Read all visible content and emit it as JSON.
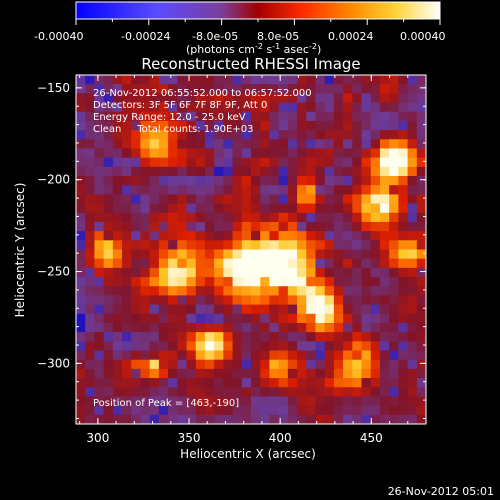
{
  "colorbar": {
    "ticks": [
      "-0.00040",
      "-0.00024",
      "-8.0e-05",
      "8.0e-05",
      "0.00024",
      "0.00040"
    ],
    "units_main": "(photons cm",
    "units_sup1": "-2",
    "units_mid1": " s",
    "units_sup2": "-1",
    "units_mid2": " asec",
    "units_sup3": "-2",
    "units_end": ")",
    "colors": [
      "#0000ff",
      "#6a4bff",
      "#7a3f9a",
      "#a00000",
      "#ff3000",
      "#ff8c00",
      "#ffd43a",
      "#ffffff"
    ]
  },
  "chart_data": {
    "type": "heatmap",
    "title": "Reconstructed RHESSI Image",
    "xlabel": "Heliocentric X (arcsec)",
    "ylabel": "Heliocentric Y (arcsec)",
    "xlim": [
      288,
      480
    ],
    "ylim": [
      -333,
      -143
    ],
    "xticks": [
      300,
      350,
      400,
      450
    ],
    "yticks": [
      -150,
      -200,
      -250,
      -300
    ],
    "xtick_labels": [
      "300",
      "350",
      "400",
      "450"
    ],
    "ytick_labels": [
      "−150",
      "−200",
      "−250",
      "−300"
    ],
    "colorbar_range": [
      -0.0004,
      0.0004
    ],
    "peak": [
      463,
      -190
    ],
    "annotations": [
      "26-Nov-2012 06:55:52.000 to 06:57:52.000",
      "Detectors: 3F 5F 6F 7F 8F 9F, Att 0",
      "Energy Range: 12.0 - 25.0 keV",
      "Clean     Total counts: 1.90E+03"
    ],
    "peak_label": "Position of Peak = [463,-190]"
  },
  "footer": {
    "timestamp": "26-Nov-2012 05:01"
  }
}
